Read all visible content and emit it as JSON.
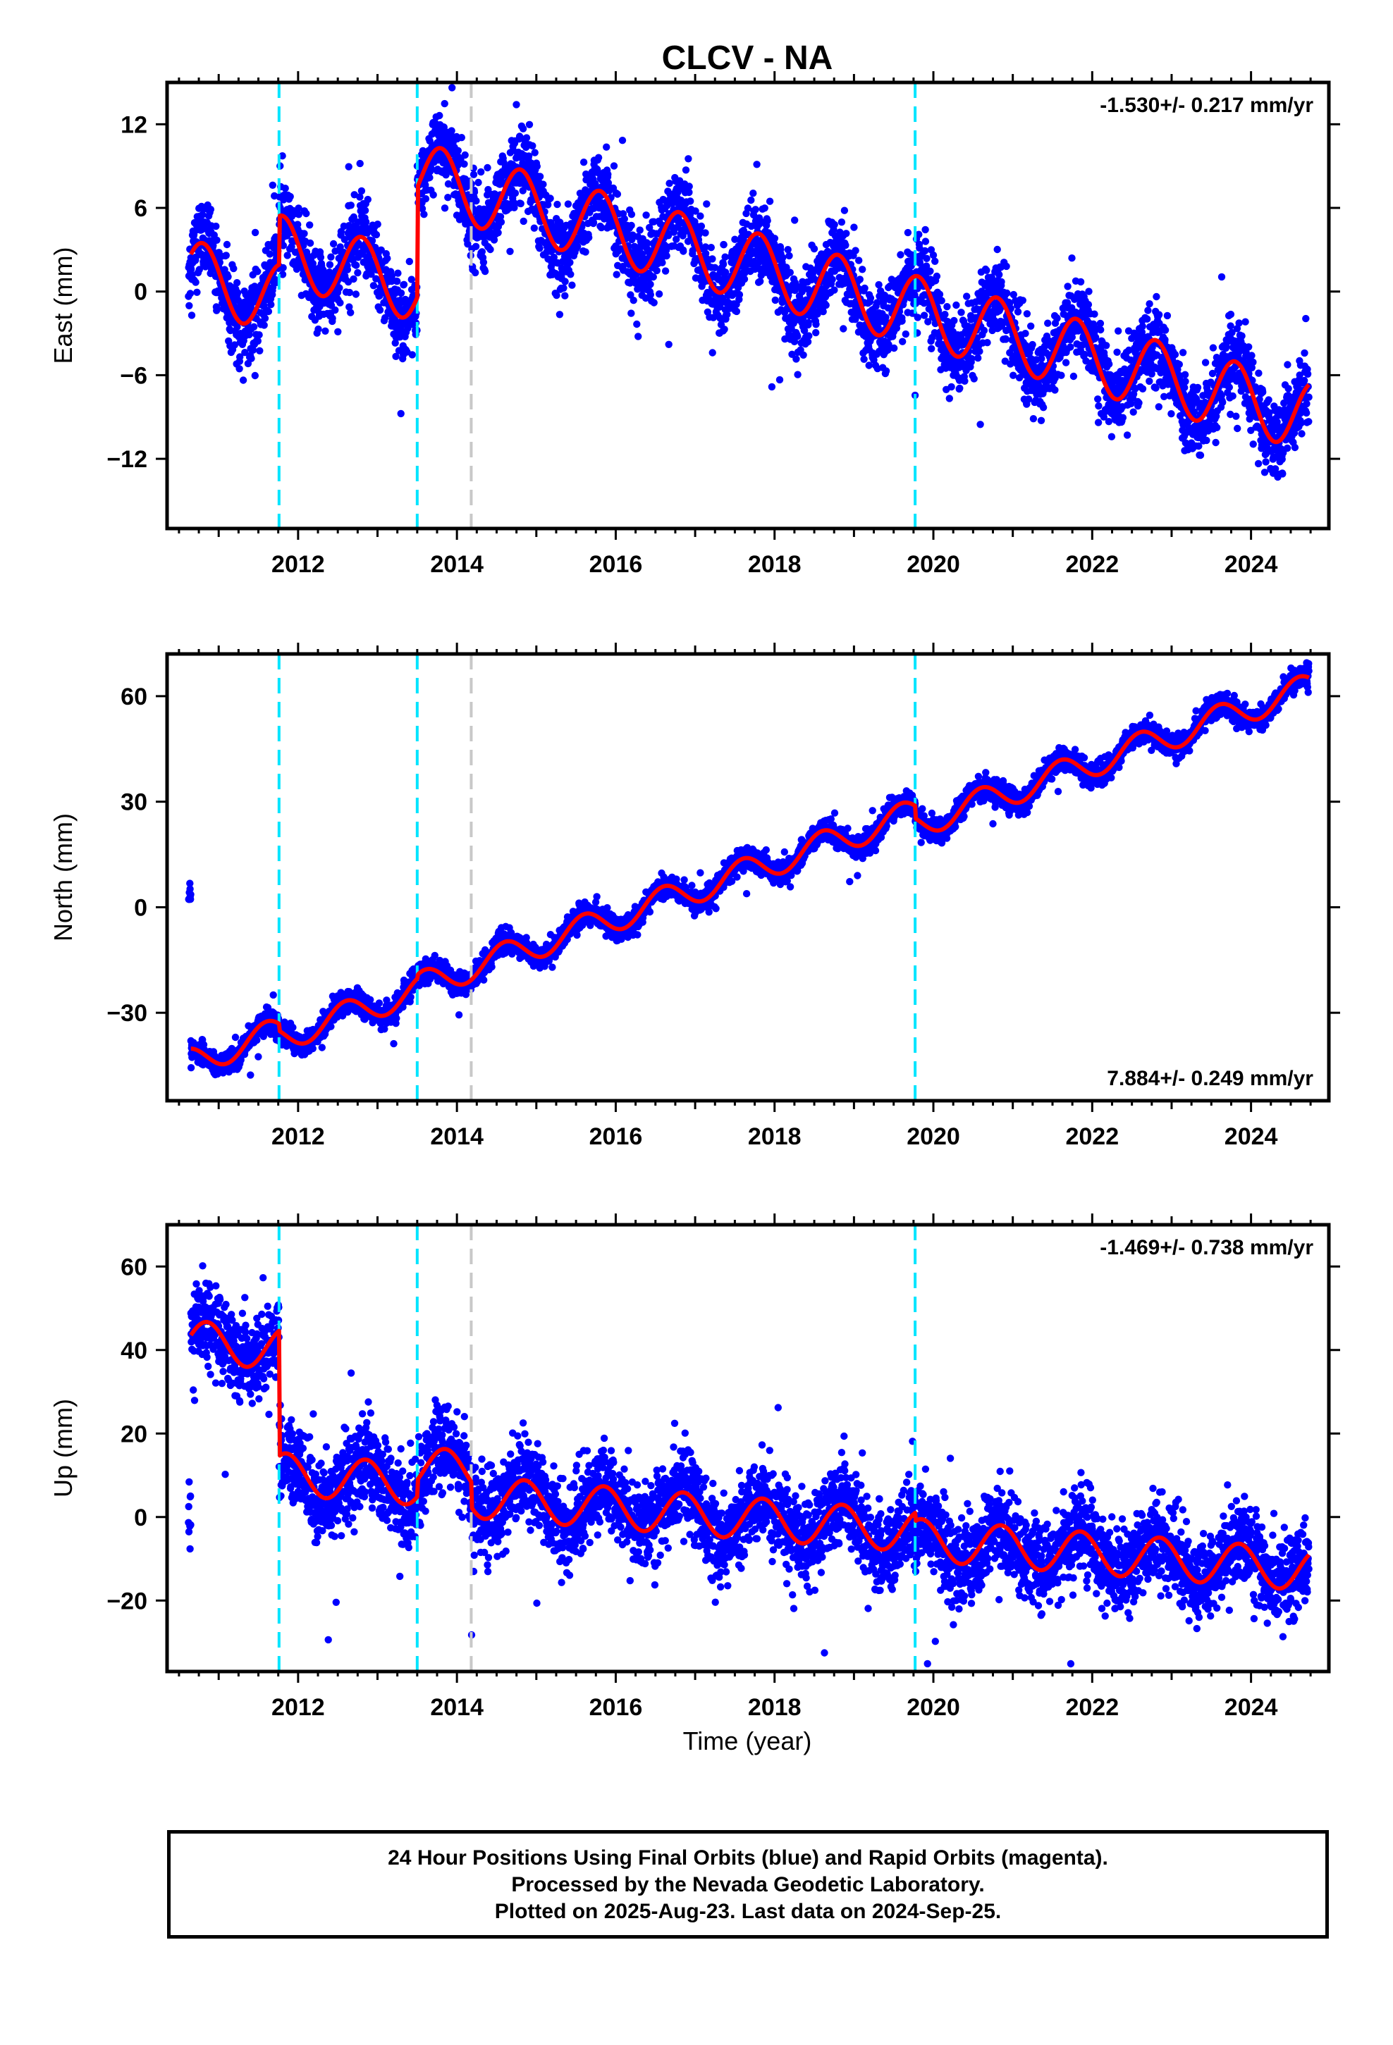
{
  "title": "CLCV - NA",
  "xlabel": "Time (year)",
  "colors": {
    "data": "#0000ff",
    "model": "#ff0000",
    "offset_equipment": "#00e5ff",
    "offset_other": "#c8c8c8",
    "frame": "#000000"
  },
  "footer": {
    "line1": "24 Hour Positions Using Final Orbits (blue) and Rapid Orbits (magenta).",
    "line2": "Processed by the Nevada Geodetic Laboratory.",
    "line3": "Plotted on 2025-Aug-23. Last data on 2024-Sep-25."
  },
  "chart_data": [
    {
      "type": "scatter",
      "component": "East",
      "ylabel": "East (mm)",
      "rate_label": "-1.530+/- 0.217 mm/yr",
      "rate_position": "top-right",
      "xlim": [
        2010.35,
        2024.98
      ],
      "ylim": [
        -17,
        15
      ],
      "xticks": [
        2012,
        2014,
        2016,
        2018,
        2020,
        2022,
        2024
      ],
      "yticks": [
        -12,
        -6,
        0,
        6,
        12
      ],
      "ytick_labels": [
        "−12",
        "−6",
        "0",
        "6",
        "12"
      ],
      "offsets_equipment": [
        2011.76,
        2013.5,
        2019.77
      ],
      "offsets_other": [
        2014.18
      ],
      "data_span": [
        2010.62,
        2024.73
      ],
      "model": {
        "start": 2010.65,
        "end": 2024.73,
        "trend_rate_mm_per_yr": -1.53,
        "steps": [
          {
            "year": 2010.65,
            "value": 1.2
          },
          {
            "year": 2011.76,
            "value": 3.5
          },
          {
            "year": 2013.5,
            "value": 7.9
          },
          {
            "year": 2019.77,
            "value": 0.0
          }
        ],
        "annual_amplitude": 2.5,
        "annual_peak_month_fraction": 0.8,
        "data_scatter_mm": 1.4
      }
    },
    {
      "type": "scatter",
      "component": "North",
      "ylabel": "North (mm)",
      "rate_label": "7.884+/- 0.249 mm/yr",
      "rate_position": "bottom-right",
      "xlim": [
        2010.35,
        2024.98
      ],
      "ylim": [
        -55,
        72
      ],
      "xticks": [
        2012,
        2014,
        2016,
        2018,
        2020,
        2022,
        2024
      ],
      "yticks": [
        -30,
        0,
        30,
        60
      ],
      "ytick_labels": [
        "−30",
        "0",
        "30",
        "60"
      ],
      "offsets_equipment": [
        2011.76,
        2013.5,
        2019.77
      ],
      "offsets_other": [
        2014.18
      ],
      "data_span": [
        2010.62,
        2024.73
      ],
      "model": {
        "start": 2010.65,
        "end": 2024.73,
        "trend_rate_mm_per_yr": 7.884,
        "steps": [
          {
            "year": 2010.65,
            "value": -44.0
          },
          {
            "year": 2011.76,
            "value": -2.0
          },
          {
            "year": 2013.5,
            "value": 1.0
          },
          {
            "year": 2019.77,
            "value": -3.5
          }
        ],
        "annual_amplitude": 4.0,
        "annual_peak_month_fraction": 0.6,
        "data_scatter_mm": 1.6
      }
    },
    {
      "type": "scatter",
      "component": "Up",
      "ylabel": "Up (mm)",
      "rate_label": "-1.469+/- 0.738 mm/yr",
      "rate_position": "top-right",
      "xlim": [
        2010.35,
        2024.98
      ],
      "ylim": [
        -37,
        70
      ],
      "xticks": [
        2012,
        2014,
        2016,
        2018,
        2020,
        2022,
        2024
      ],
      "yticks": [
        -20,
        0,
        20,
        40,
        60
      ],
      "ytick_labels": [
        "−20",
        "0",
        "20",
        "40",
        "60"
      ],
      "offsets_equipment": [
        2011.76,
        2013.5,
        2019.77
      ],
      "offsets_other": [
        2014.18
      ],
      "data_span": [
        2010.62,
        2024.73
      ],
      "model": {
        "start": 2010.65,
        "end": 2024.73,
        "trend_rate_mm_per_yr": -1.469,
        "steps": [
          {
            "year": 2010.65,
            "value": 42.0
          },
          {
            "year": 2011.76,
            "value": -30.0
          },
          {
            "year": 2013.5,
            "value": 4.0
          },
          {
            "year": 2014.18,
            "value": -6.0
          },
          {
            "year": 2019.77,
            "value": -2.0
          }
        ],
        "annual_amplitude": 5.0,
        "annual_peak_month_fraction": 0.85,
        "data_scatter_mm": 5.0
      }
    }
  ]
}
